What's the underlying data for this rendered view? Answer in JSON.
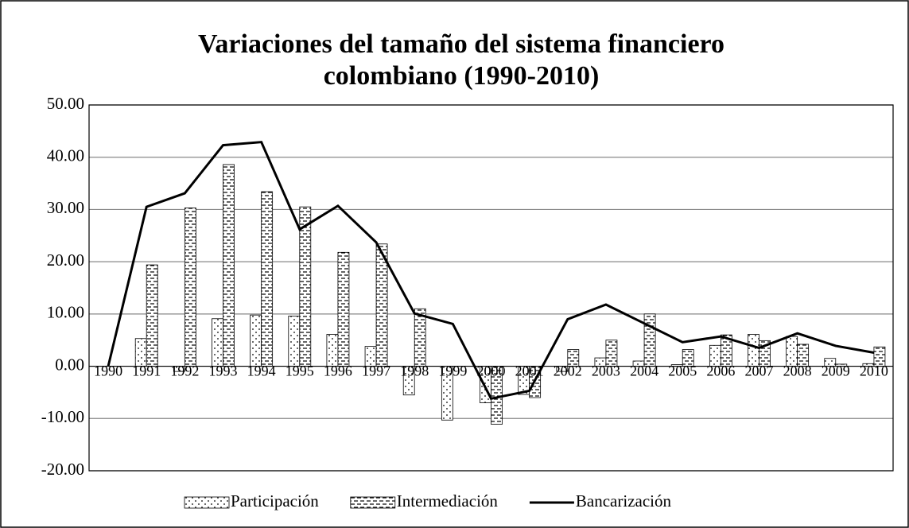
{
  "chart_data": {
    "type": "bar",
    "title": "Variaciones del tamaño del sistema financiero colombiano (1990-2010)",
    "categories": [
      "1990",
      "1991",
      "1992",
      "1993",
      "1994",
      "1995",
      "1996",
      "1997",
      "1998",
      "1999",
      "2000",
      "2001",
      "2002",
      "2003",
      "2004",
      "2005",
      "2006",
      "2007",
      "2008",
      "2009",
      "2010"
    ],
    "series": [
      {
        "name": "Participación",
        "type": "bar",
        "color": "#000000",
        "pattern": "dots",
        "values": [
          null,
          5.3,
          -1.0,
          9.1,
          9.8,
          9.6,
          6.1,
          3.8,
          -5.5,
          -10.3,
          -7.0,
          -5.4,
          -1.0,
          1.6,
          1.0,
          0.3,
          4.0,
          6.1,
          5.7,
          1.5,
          0.5
        ]
      },
      {
        "name": "Intermediación",
        "type": "bar",
        "color": "#000000",
        "pattern": "dashes",
        "values": [
          null,
          19.4,
          30.3,
          38.6,
          33.4,
          30.5,
          21.8,
          23.4,
          11.0,
          null,
          -11.1,
          -6.0,
          3.2,
          5.0,
          10.0,
          3.2,
          6.0,
          4.9,
          4.2,
          0.4,
          3.7
        ]
      },
      {
        "name": "Bancarización",
        "type": "line",
        "color": "#000000",
        "values": [
          0,
          30.5,
          33.1,
          42.3,
          42.9,
          26.2,
          30.7,
          23.7,
          10.1,
          8.1,
          -6.2,
          -4.7,
          9.0,
          11.8,
          8.2,
          4.6,
          5.7,
          3.5,
          6.3,
          3.9,
          2.6
        ]
      }
    ],
    "ylim": [
      -20,
      50
    ],
    "yticks": [
      {
        "value": -20,
        "label": "-20.00"
      },
      {
        "value": -10,
        "label": "-10.00"
      },
      {
        "value": 0,
        "label": "0.00"
      },
      {
        "value": 10,
        "label": "10.00"
      },
      {
        "value": 20,
        "label": "20.00"
      },
      {
        "value": 30,
        "label": "30.00"
      },
      {
        "value": 40,
        "label": "40.00"
      },
      {
        "value": 50,
        "label": "50.00"
      }
    ],
    "grid": true,
    "legend": "bottom"
  }
}
